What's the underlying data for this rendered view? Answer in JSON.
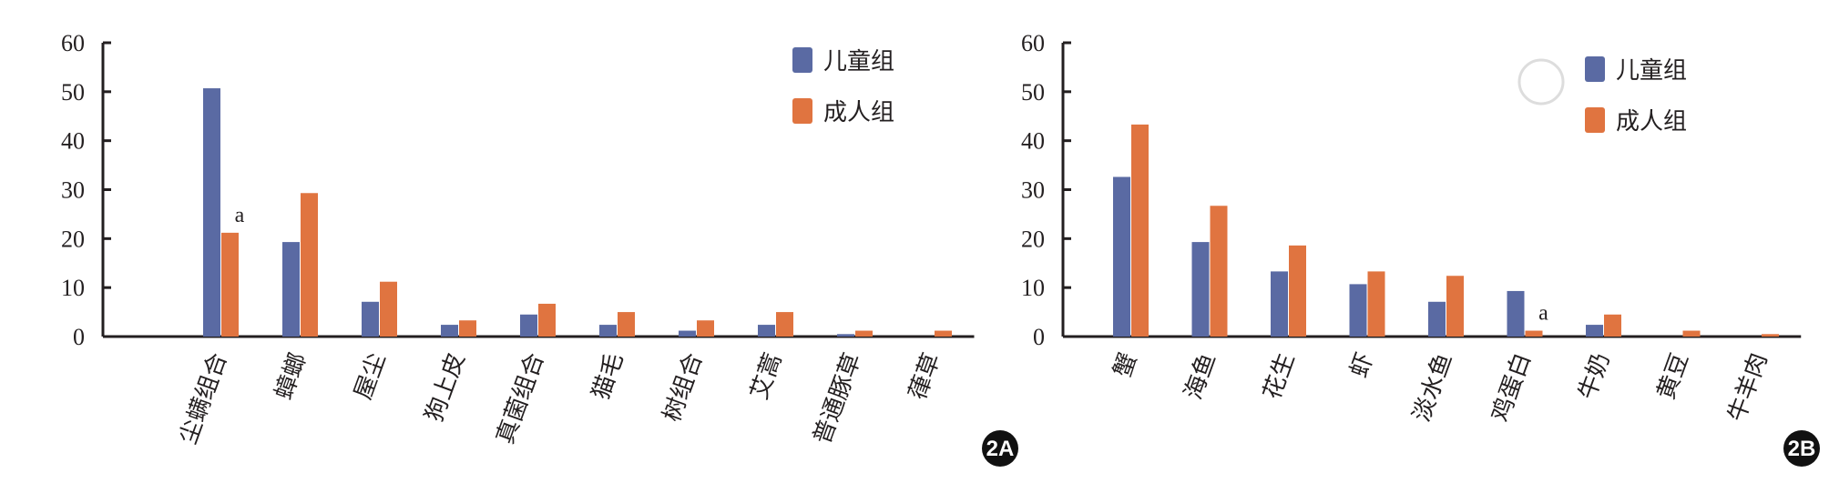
{
  "colors": {
    "child": "#5a6aa3",
    "adult": "#e07440",
    "axis": "#231f20"
  },
  "chart_data": [
    {
      "type": "bar",
      "panel_label": "2A",
      "categories": [
        "尘螨组合",
        "蟑螂",
        "屋尘",
        "狗上皮",
        "真菌组合",
        "猫毛",
        "树组合",
        "艾蒿",
        "普通豚草",
        "葎草"
      ],
      "series": [
        {
          "name": "儿童组",
          "values": [
            50.7,
            19.3,
            7.1,
            2.4,
            4.5,
            2.4,
            1.2,
            2.4,
            0.5,
            0
          ]
        },
        {
          "name": "成人组",
          "values": [
            21.2,
            29.3,
            11.2,
            3.3,
            6.7,
            5.0,
            3.3,
            5.0,
            1.2,
            1.2
          ]
        }
      ],
      "annotations": [
        {
          "category": "尘螨组合",
          "series": "成人组",
          "text": "a"
        }
      ],
      "ylim": [
        0,
        60
      ],
      "yticks": [
        0,
        10,
        20,
        30,
        40,
        50,
        60
      ],
      "legend": "top-right",
      "grid": false
    },
    {
      "type": "bar",
      "panel_label": "2B",
      "categories": [
        "蟹",
        "海鱼",
        "花生",
        "虾",
        "淡水鱼",
        "鸡蛋白",
        "牛奶",
        "黄豆",
        "牛羊肉"
      ],
      "series": [
        {
          "name": "儿童组",
          "values": [
            32.6,
            19.3,
            13.3,
            10.7,
            7.1,
            9.3,
            2.4,
            0,
            0
          ]
        },
        {
          "name": "成人组",
          "values": [
            43.3,
            26.7,
            18.6,
            13.3,
            12.4,
            1.2,
            4.5,
            1.2,
            0.5
          ]
        }
      ],
      "annotations": [
        {
          "category": "鸡蛋白",
          "series": "成人组",
          "text": "a"
        }
      ],
      "ylim": [
        0,
        60
      ],
      "yticks": [
        0,
        10,
        20,
        30,
        40,
        50,
        60
      ],
      "legend": "top-right",
      "grid": false
    }
  ]
}
